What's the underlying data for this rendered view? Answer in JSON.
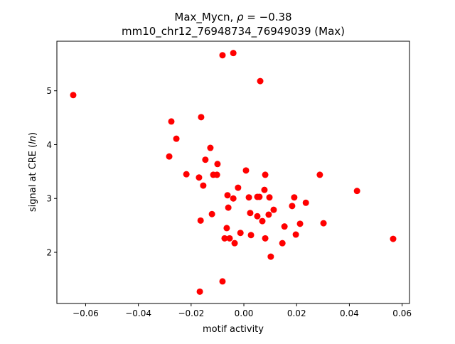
{
  "chart_data": {
    "type": "scatter",
    "title_line1_prefix": "Max_Mycn, ",
    "title_rho_symbol": "ρ",
    "title_rho_value": " = −0.38",
    "title_line2": "mm10_chr12_76948734_76949039 (Max)",
    "xlabel": "motif activity",
    "ylabel_prefix": "signal at CRE (",
    "ylabel_italic": "ln",
    "ylabel_suffix": ")",
    "xlim": [
      -0.0709,
      0.0628
    ],
    "ylim": [
      1.05,
      5.92
    ],
    "xticks": [
      -0.06,
      -0.04,
      -0.02,
      0.0,
      0.02,
      0.04,
      0.06
    ],
    "xtick_labels": [
      "−0.06",
      "−0.04",
      "−0.02",
      "0.00",
      "0.02",
      "0.04",
      "0.06"
    ],
    "yticks": [
      2,
      3,
      4,
      5
    ],
    "ytick_labels": [
      "2",
      "3",
      "4",
      "5"
    ],
    "grid": false,
    "marker_color": "#ff0000",
    "points": [
      [
        -0.0647,
        4.92
      ],
      [
        -0.0081,
        5.66
      ],
      [
        -0.004,
        5.7
      ],
      [
        0.0062,
        5.18
      ],
      [
        -0.0275,
        4.43
      ],
      [
        -0.0162,
        4.51
      ],
      [
        -0.0256,
        4.11
      ],
      [
        -0.0127,
        3.94
      ],
      [
        -0.0283,
        3.78
      ],
      [
        -0.0146,
        3.72
      ],
      [
        -0.01,
        3.64
      ],
      [
        -0.0218,
        3.45
      ],
      [
        -0.017,
        3.39
      ],
      [
        -0.0116,
        3.44
      ],
      [
        -0.0102,
        3.44
      ],
      [
        0.0008,
        3.52
      ],
      [
        0.0081,
        3.44
      ],
      [
        0.0288,
        3.44
      ],
      [
        -0.0154,
        3.24
      ],
      [
        -0.0022,
        3.2
      ],
      [
        0.0429,
        3.14
      ],
      [
        -0.0062,
        3.06
      ],
      [
        -0.004,
        3.0
      ],
      [
        0.0019,
        3.02
      ],
      [
        0.0051,
        3.03
      ],
      [
        0.0059,
        3.03
      ],
      [
        0.0078,
        3.16
      ],
      [
        0.0097,
        3.02
      ],
      [
        0.0191,
        3.02
      ],
      [
        0.0183,
        2.86
      ],
      [
        0.0235,
        2.92
      ],
      [
        -0.0059,
        2.83
      ],
      [
        0.0024,
        2.73
      ],
      [
        0.0051,
        2.67
      ],
      [
        0.0094,
        2.7
      ],
      [
        0.0113,
        2.79
      ],
      [
        0.007,
        2.58
      ],
      [
        -0.0121,
        2.71
      ],
      [
        -0.0164,
        2.59
      ],
      [
        0.0154,
        2.48
      ],
      [
        0.0213,
        2.53
      ],
      [
        0.0302,
        2.54
      ],
      [
        -0.0065,
        2.45
      ],
      [
        -0.0013,
        2.36
      ],
      [
        0.0027,
        2.32
      ],
      [
        -0.0073,
        2.26
      ],
      [
        -0.0054,
        2.26
      ],
      [
        -0.0035,
        2.17
      ],
      [
        0.0081,
        2.26
      ],
      [
        0.0146,
        2.17
      ],
      [
        0.0197,
        2.33
      ],
      [
        0.0566,
        2.25
      ],
      [
        0.0102,
        1.92
      ],
      [
        -0.0081,
        1.46
      ],
      [
        -0.0167,
        1.27
      ]
    ]
  }
}
